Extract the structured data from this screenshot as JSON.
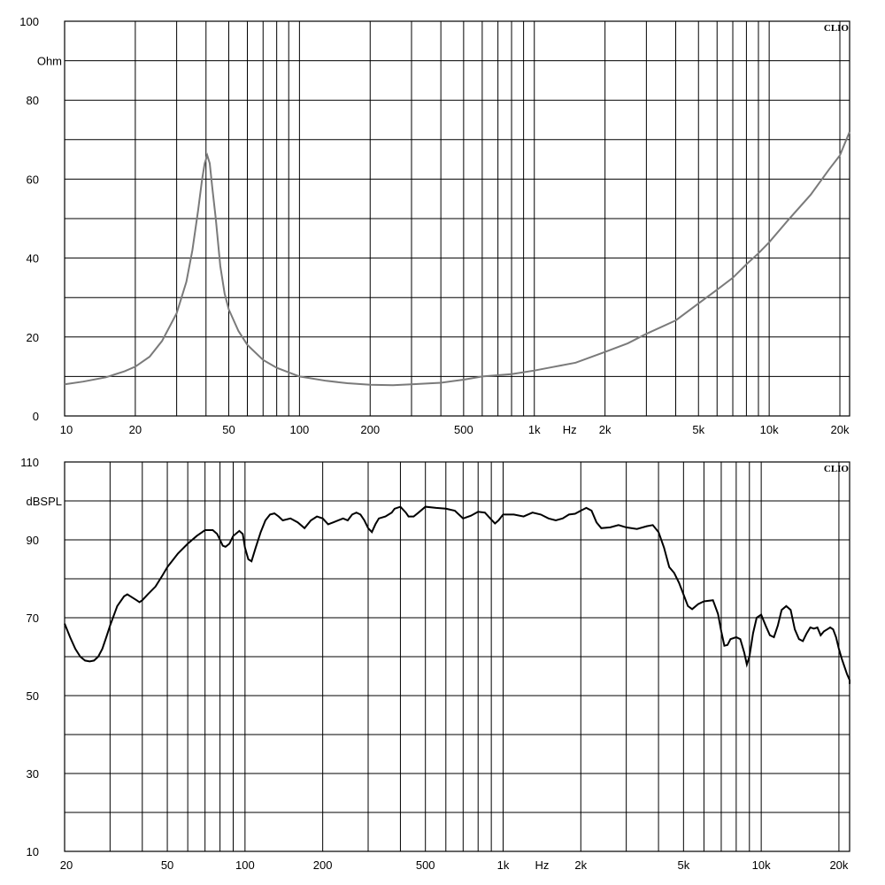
{
  "brand_label": "CLIO",
  "chart_data": [
    {
      "type": "line",
      "x_scale": "log",
      "xlim": [
        10,
        22000
      ],
      "ylim": [
        0,
        100
      ],
      "ylabel": "Ohm",
      "xlabel": "Hz",
      "grid": true,
      "y_ticks": [
        {
          "value": 0,
          "label": "0"
        },
        {
          "value": 20,
          "label": "20"
        },
        {
          "value": 40,
          "label": "40"
        },
        {
          "value": 60,
          "label": "60"
        },
        {
          "value": 80,
          "label": "80"
        },
        {
          "value": 100,
          "label": "100"
        }
      ],
      "x_ticks": [
        {
          "value": 10,
          "label": "10"
        },
        {
          "value": 20,
          "label": "20"
        },
        {
          "value": 50,
          "label": "50"
        },
        {
          "value": 100,
          "label": "100"
        },
        {
          "value": 200,
          "label": "200"
        },
        {
          "value": 500,
          "label": "500"
        },
        {
          "value": 1000,
          "label": "1k"
        },
        {
          "value": 2000,
          "label": "2k"
        },
        {
          "value": 5000,
          "label": "5k"
        },
        {
          "value": 10000,
          "label": "10k"
        },
        {
          "value": 20000,
          "label": "20k"
        }
      ],
      "series": [
        {
          "color": "#7a7a7a",
          "points": [
            [
              10,
              8
            ],
            [
              12,
              8.7
            ],
            [
              15,
              9.8
            ],
            [
              18,
              11.3
            ],
            [
              20,
              12.5
            ],
            [
              23,
              15
            ],
            [
              26,
              19
            ],
            [
              30,
              26
            ],
            [
              33,
              34
            ],
            [
              35,
              42
            ],
            [
              37,
              52
            ],
            [
              38.5,
              60
            ],
            [
              39.5,
              64
            ],
            [
              40.5,
              66
            ],
            [
              41.5,
              64
            ],
            [
              42.5,
              58
            ],
            [
              44,
              50
            ],
            [
              46,
              38
            ],
            [
              48,
              31
            ],
            [
              50,
              27
            ],
            [
              55,
              21.5
            ],
            [
              60,
              18
            ],
            [
              70,
              14.2
            ],
            [
              80,
              12.2
            ],
            [
              100,
              10
            ],
            [
              130,
              8.9
            ],
            [
              160,
              8.3
            ],
            [
              200,
              7.9
            ],
            [
              250,
              7.8
            ],
            [
              300,
              8
            ],
            [
              400,
              8.4
            ],
            [
              500,
              9.2
            ],
            [
              600,
              10
            ],
            [
              800,
              10.6
            ],
            [
              1000,
              11.5
            ],
            [
              1200,
              12.4
            ],
            [
              1500,
              13.5
            ],
            [
              2000,
              16.2
            ],
            [
              2500,
              18.4
            ],
            [
              3000,
              20.8
            ],
            [
              4000,
              24.2
            ],
            [
              5000,
              28.5
            ],
            [
              6000,
              32
            ],
            [
              7000,
              35
            ],
            [
              8000,
              38.4
            ],
            [
              9000,
              41.2
            ],
            [
              10000,
              44
            ],
            [
              12000,
              49.5
            ],
            [
              15000,
              56
            ],
            [
              18000,
              62.5
            ],
            [
              20000,
              66
            ],
            [
              22000,
              72
            ]
          ]
        }
      ]
    },
    {
      "type": "line",
      "x_scale": "log",
      "xlim": [
        20,
        22000
      ],
      "ylim": [
        10,
        110
      ],
      "ylabel": "dBSPL",
      "xlabel": "Hz",
      "grid": true,
      "y_ticks": [
        {
          "value": 10,
          "label": "10"
        },
        {
          "value": 30,
          "label": "30"
        },
        {
          "value": 50,
          "label": "50"
        },
        {
          "value": 70,
          "label": "70"
        },
        {
          "value": 90,
          "label": "90"
        },
        {
          "value": 110,
          "label": "110"
        }
      ],
      "x_ticks": [
        {
          "value": 20,
          "label": "20"
        },
        {
          "value": 50,
          "label": "50"
        },
        {
          "value": 100,
          "label": "100"
        },
        {
          "value": 200,
          "label": "200"
        },
        {
          "value": 500,
          "label": "500"
        },
        {
          "value": 1000,
          "label": "1k"
        },
        {
          "value": 2000,
          "label": "2k"
        },
        {
          "value": 5000,
          "label": "5k"
        },
        {
          "value": 10000,
          "label": "10k"
        },
        {
          "value": 20000,
          "label": "20k"
        }
      ],
      "series": [
        {
          "color": "#000000",
          "points": [
            [
              20,
              68.5
            ],
            [
              21,
              65
            ],
            [
              22,
              62
            ],
            [
              23,
              60
            ],
            [
              24,
              59
            ],
            [
              25,
              58.8
            ],
            [
              26,
              59
            ],
            [
              27,
              60
            ],
            [
              28,
              62
            ],
            [
              29,
              65
            ],
            [
              30,
              68
            ],
            [
              32,
              73
            ],
            [
              34,
              75.5
            ],
            [
              35,
              76
            ],
            [
              36,
              75.5
            ],
            [
              38,
              74.5
            ],
            [
              39,
              74
            ],
            [
              40,
              74.5
            ],
            [
              42,
              76
            ],
            [
              45,
              78
            ],
            [
              48,
              81
            ],
            [
              50,
              83
            ],
            [
              55,
              86.5
            ],
            [
              60,
              89
            ],
            [
              65,
              91
            ],
            [
              70,
              92.5
            ],
            [
              75,
              92.5
            ],
            [
              78,
              91.5
            ],
            [
              80,
              90
            ],
            [
              82,
              88.5
            ],
            [
              84,
              88.2
            ],
            [
              87,
              89
            ],
            [
              90,
              91
            ],
            [
              95,
              92.3
            ],
            [
              98,
              91.5
            ],
            [
              100,
              88
            ],
            [
              103,
              85
            ],
            [
              106,
              84.5
            ],
            [
              110,
              88
            ],
            [
              115,
              92
            ],
            [
              120,
              95
            ],
            [
              125,
              96.5
            ],
            [
              130,
              96.8
            ],
            [
              135,
              96
            ],
            [
              140,
              95
            ],
            [
              150,
              95.5
            ],
            [
              160,
              94.5
            ],
            [
              170,
              93
            ],
            [
              180,
              95
            ],
            [
              190,
              96
            ],
            [
              200,
              95.5
            ],
            [
              210,
              94
            ],
            [
              220,
              94.5
            ],
            [
              240,
              95.5
            ],
            [
              250,
              95
            ],
            [
              260,
              96.5
            ],
            [
              270,
              97
            ],
            [
              280,
              96.5
            ],
            [
              290,
              95
            ],
            [
              300,
              93
            ],
            [
              310,
              92
            ],
            [
              320,
              94
            ],
            [
              330,
              95.5
            ],
            [
              350,
              96
            ],
            [
              370,
              97
            ],
            [
              380,
              98
            ],
            [
              400,
              98.5
            ],
            [
              420,
              97
            ],
            [
              430,
              96
            ],
            [
              450,
              96
            ],
            [
              470,
              97
            ],
            [
              500,
              98.5
            ],
            [
              550,
              98.2
            ],
            [
              600,
              98
            ],
            [
              650,
              97.5
            ],
            [
              700,
              95.5
            ],
            [
              750,
              96.2
            ],
            [
              800,
              97.2
            ],
            [
              850,
              97
            ],
            [
              900,
              95.2
            ],
            [
              930,
              94.2
            ],
            [
              960,
              95
            ],
            [
              1000,
              96.5
            ],
            [
              1100,
              96.5
            ],
            [
              1200,
              96
            ],
            [
              1300,
              97
            ],
            [
              1400,
              96.5
            ],
            [
              1500,
              95.5
            ],
            [
              1600,
              95
            ],
            [
              1700,
              95.5
            ],
            [
              1800,
              96.5
            ],
            [
              1900,
              96.7
            ],
            [
              2000,
              97.5
            ],
            [
              2100,
              98.2
            ],
            [
              2200,
              97.5
            ],
            [
              2300,
              94.5
            ],
            [
              2400,
              93
            ],
            [
              2600,
              93.2
            ],
            [
              2800,
              93.8
            ],
            [
              3000,
              93.2
            ],
            [
              3300,
              92.8
            ],
            [
              3600,
              93.5
            ],
            [
              3800,
              93.8
            ],
            [
              4000,
              92
            ],
            [
              4200,
              88
            ],
            [
              4400,
              83
            ],
            [
              4600,
              81.5
            ],
            [
              4800,
              79
            ],
            [
              5000,
              76
            ],
            [
              5200,
              73
            ],
            [
              5400,
              72.2
            ],
            [
              5700,
              73.5
            ],
            [
              6000,
              74.2
            ],
            [
              6500,
              74.5
            ],
            [
              6800,
              71
            ],
            [
              7000,
              66.5
            ],
            [
              7200,
              62.8
            ],
            [
              7400,
              63
            ],
            [
              7600,
              64.5
            ],
            [
              8000,
              65
            ],
            [
              8300,
              64.5
            ],
            [
              8600,
              61
            ],
            [
              8800,
              58
            ],
            [
              9000,
              60
            ],
            [
              9300,
              66
            ],
            [
              9600,
              70
            ],
            [
              10000,
              70.8
            ],
            [
              10400,
              68
            ],
            [
              10800,
              65.5
            ],
            [
              11200,
              65
            ],
            [
              11600,
              68
            ],
            [
              12000,
              72
            ],
            [
              12500,
              73
            ],
            [
              13000,
              72
            ],
            [
              13500,
              67
            ],
            [
              14000,
              64.5
            ],
            [
              14500,
              64
            ],
            [
              15000,
              66
            ],
            [
              15500,
              67.5
            ],
            [
              16000,
              67.2
            ],
            [
              16500,
              67.5
            ],
            [
              17000,
              65.5
            ],
            [
              17500,
              66.5
            ],
            [
              18000,
              67
            ],
            [
              18500,
              67.5
            ],
            [
              19000,
              67
            ],
            [
              19500,
              65
            ],
            [
              20000,
              62
            ],
            [
              20500,
              59.5
            ],
            [
              21000,
              57.5
            ],
            [
              21500,
              55.5
            ],
            [
              22000,
              54
            ],
            [
              22500,
              53
            ],
            [
              23000,
              53
            ],
            [
              24000,
              53.2
            ]
          ]
        }
      ]
    }
  ]
}
